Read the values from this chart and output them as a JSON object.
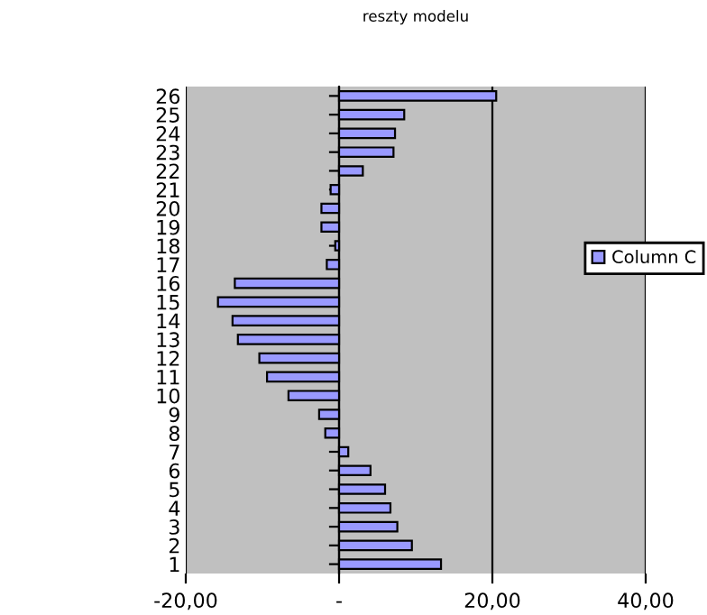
{
  "chart_data": {
    "type": "bar",
    "orientation": "horizontal",
    "title": "reszty modelu",
    "categories": [
      "26",
      "25",
      "24",
      "23",
      "22",
      "21",
      "20",
      "19",
      "18",
      "17",
      "16",
      "15",
      "14",
      "13",
      "12",
      "11",
      "10",
      "9",
      "8",
      "7",
      "6",
      "5",
      "4",
      "3",
      "2",
      "1"
    ],
    "series": [
      {
        "name": "Column C",
        "color": "#9999ff",
        "values": [
          20.5,
          8.5,
          7.3,
          7.1,
          3.1,
          -1.1,
          -2.3,
          -2.3,
          -0.5,
          -1.6,
          -13.6,
          -15.8,
          -13.9,
          -13.2,
          -10.4,
          -9.4,
          -6.6,
          -2.6,
          -1.8,
          1.2,
          4.1,
          6.0,
          6.7,
          7.6,
          9.5,
          13.3
        ]
      }
    ],
    "xlim": [
      -20,
      40
    ],
    "xticks": [
      {
        "value": -20,
        "label": "-20,00"
      },
      {
        "value": 0,
        "label": "-"
      },
      {
        "value": 20,
        "label": "20,00"
      },
      {
        "value": 40,
        "label": "40,00"
      }
    ],
    "grid": "x",
    "legend": "right"
  }
}
